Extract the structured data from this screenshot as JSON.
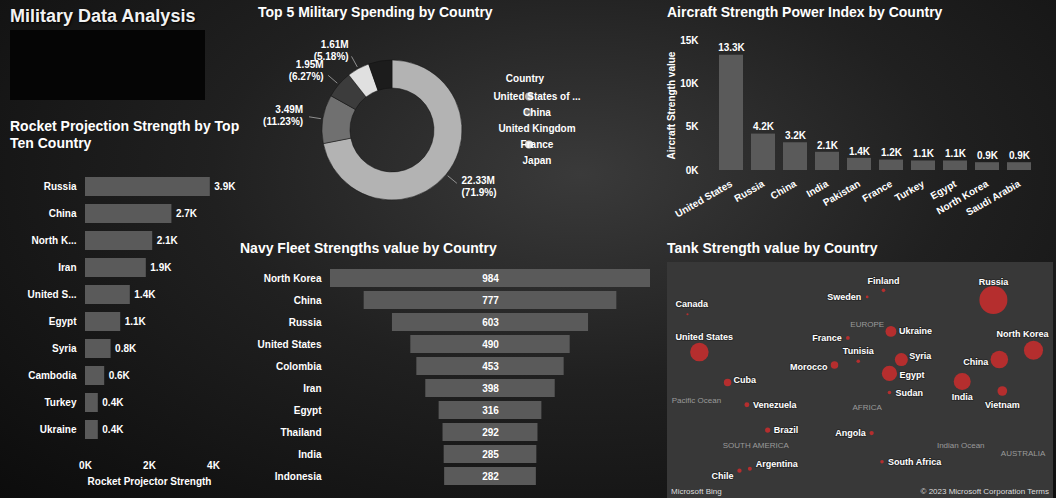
{
  "title": "Military Data Analysis",
  "chart_data": [
    {
      "type": "pie",
      "title": "Top 5 Military Spending by Country",
      "legend_title": "Country",
      "legend": "right",
      "categories": [
        "United States of ...",
        "China",
        "United Kingdom",
        "France",
        "Japan"
      ],
      "values": [
        22.33,
        3.49,
        1.95,
        1.61,
        1.68
      ],
      "value_labels": [
        "22.33M (71.9%)",
        "3.49M (11.23%)",
        "1.95M (6.27%)",
        "1.61M (5.18%)",
        null
      ],
      "data_labels": true,
      "colors": [
        "#b3b3b3",
        "#707070",
        "#3c3c3c",
        "#e0e0e0",
        "#1c1c1c"
      ]
    },
    {
      "type": "bar",
      "title": "Aircraft Strength Power Index by Country",
      "y_label": "Aircraft Strength value",
      "categories": [
        "United States",
        "Russia",
        "China",
        "India",
        "Pakistan",
        "France",
        "Turkey",
        "Egypt",
        "North Korea",
        "Saudi Arabia"
      ],
      "values": [
        13300,
        4200,
        3200,
        2100,
        1400,
        1200,
        1100,
        1100,
        900,
        900
      ],
      "value_labels": [
        "13.3K",
        "4.2K",
        "3.2K",
        "2.1K",
        "1.4K",
        "1.2K",
        "1.1K",
        "1.1K",
        "0.9K",
        "0.9K"
      ],
      "data_labels": true,
      "color": "#5a5a5a",
      "grid": false,
      "ylim": [
        0,
        15000
      ],
      "yticks": [
        {
          "value": 0,
          "label": "0K"
        },
        {
          "value": 5000,
          "label": "5K"
        },
        {
          "value": 10000,
          "label": "10K"
        },
        {
          "value": 15000,
          "label": "15K"
        }
      ]
    },
    {
      "type": "bar",
      "orientation": "horizontal",
      "title": "Rocket Projection Strength by Top Ten Country",
      "x_label": "Rocket Projector Strength",
      "categories": [
        "Russia",
        "China",
        "North K...",
        "Iran",
        "United S...",
        "Egypt",
        "Syria",
        "Cambodia",
        "Turkey",
        "Ukraine"
      ],
      "values": [
        3900,
        2700,
        2100,
        1900,
        1400,
        1100,
        800,
        600,
        400,
        400
      ],
      "value_labels": [
        "3.9K",
        "2.7K",
        "2.1K",
        "1.9K",
        "1.4K",
        "1.1K",
        "0.8K",
        "0.6K",
        "0.4K",
        "0.4K"
      ],
      "data_labels": true,
      "color": "#5a5a5a",
      "grid": false,
      "xlim": [
        0,
        4000
      ],
      "xticks": [
        {
          "value": 0,
          "label": "0K"
        },
        {
          "value": 2000,
          "label": "2K"
        },
        {
          "value": 4000,
          "label": "4K"
        }
      ]
    },
    {
      "type": "funnel",
      "title": "Navy Fleet Strengths value by Country",
      "categories": [
        "North Korea",
        "China",
        "Russia",
        "United States",
        "Colombia",
        "Iran",
        "Egypt",
        "Thailand",
        "India",
        "Indonesia"
      ],
      "values": [
        984,
        777,
        603,
        490,
        453,
        398,
        316,
        292,
        285,
        282
      ],
      "data_labels": true,
      "tick_labels": "y",
      "color": "#5a5a5a"
    },
    {
      "type": "map",
      "title": "Tank Strength value by Country",
      "categories": [
        "Russia",
        "North Korea",
        "China",
        "India",
        "Egypt",
        "United States",
        "Syria",
        "Ukraine",
        "Finland",
        "Sweden",
        "Canada",
        "France",
        "Cuba",
        "Tunisia",
        "Morocco",
        "Venezuela",
        "Brazil",
        "Sudan",
        "Vietnam",
        "Argentina",
        "Angola",
        "Chile",
        "South Africa"
      ],
      "lon": [
        100,
        127,
        104,
        79,
        30,
        -98,
        38,
        31,
        26,
        15,
        -106,
        2,
        -79,
        9,
        -7,
        -66,
        -52,
        30,
        106,
        -64,
        18,
        -71,
        25
      ],
      "lat": [
        61,
        40,
        35,
        22,
        27,
        39,
        35,
        49,
        64,
        62,
        56,
        46,
        21.5,
        34,
        32,
        7,
        -10,
        15,
        16,
        -34,
        -12,
        -35,
        -30
      ],
      "sizes": [
        12566,
        5845,
        4950,
        4614,
        3735,
        5500,
        2720,
        1890,
        200,
        120,
        74,
        222,
        900,
        200,
        900,
        390,
        440,
        200,
        1500,
        250,
        300,
        300,
        200
      ],
      "color": "#d92b2b",
      "annotations": [
        {
          "text": "Pacific Ocean",
          "lon": -100,
          "lat": 10
        },
        {
          "text": "EUROPE",
          "lon": 15,
          "lat": 52
        },
        {
          "text": "AFRICA",
          "lon": 15,
          "lat": 5
        },
        {
          "text": "SOUTH AMERICA",
          "lon": -60,
          "lat": -20
        },
        {
          "text": "Indian Ocean",
          "lon": 78,
          "lat": -20
        },
        {
          "text": "AUSTRALIA",
          "lon": 120,
          "lat": -25
        }
      ],
      "attribution": [
        "Microsoft Bing",
        "© 2023 Microsoft Corporation  Terms"
      ]
    }
  ]
}
